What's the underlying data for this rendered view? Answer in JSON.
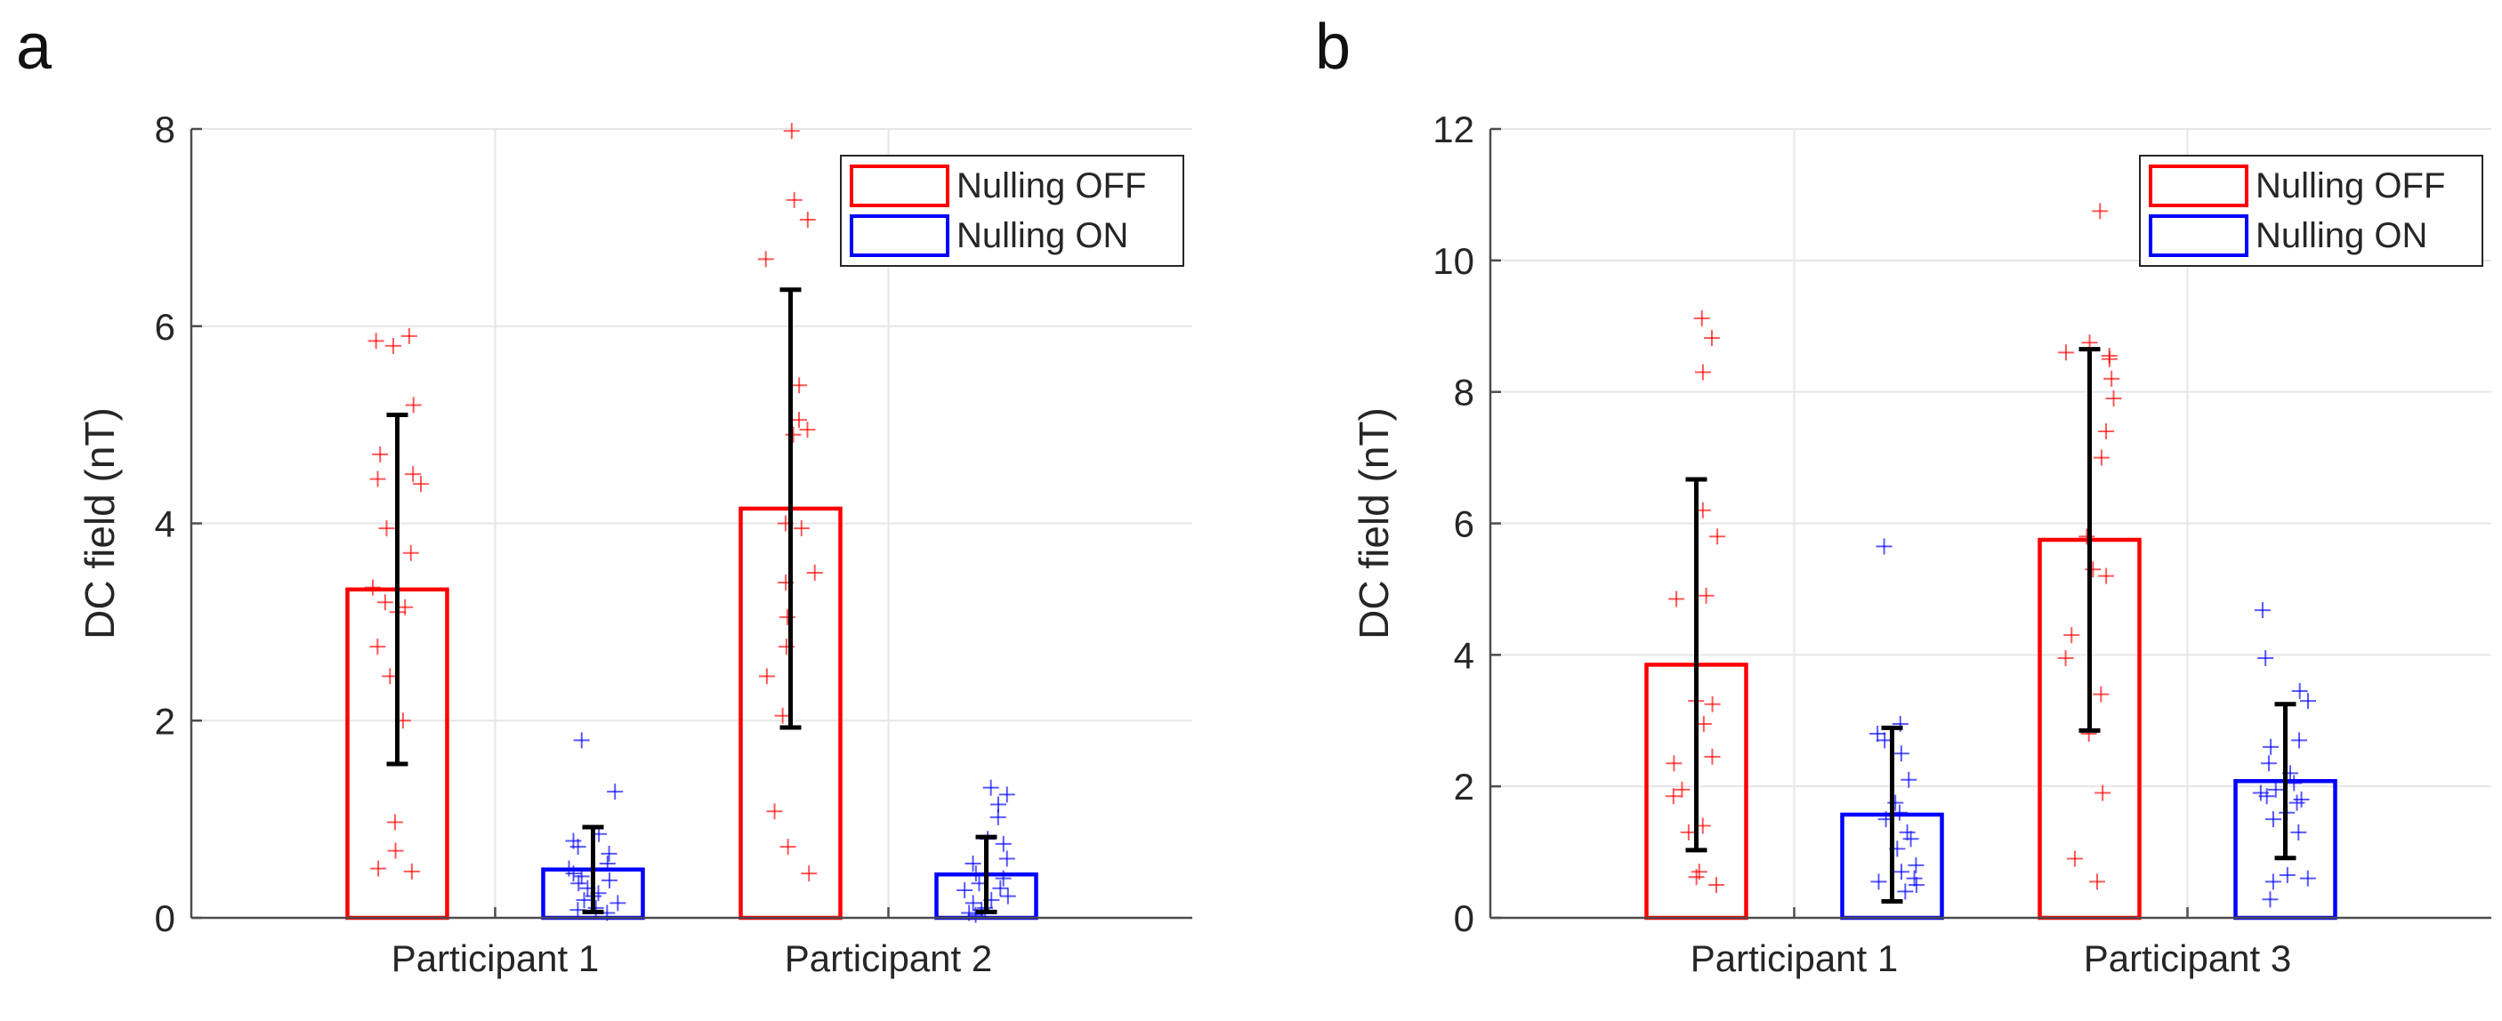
{
  "panels": [
    {
      "label": "a"
    },
    {
      "label": "b"
    }
  ],
  "colors": {
    "off": "#ff0000",
    "on": "#0000ff",
    "errorbar": "#000000",
    "grid": "#e6e6e6",
    "axis": "#4d4d4d"
  },
  "chart_data": [
    {
      "type": "bar",
      "panel": "a",
      "ylabel": "DC field (nT)",
      "xlabel": "",
      "ylim": [
        0,
        8
      ],
      "yticks": [
        0,
        2,
        4,
        6,
        8
      ],
      "categories": [
        "Participant 1",
        "Participant 2"
      ],
      "legend": {
        "position": "top-right",
        "entries": [
          "Nulling OFF",
          "Nulling ON"
        ]
      },
      "grid": true,
      "series": [
        {
          "name": "Nulling OFF",
          "values": [
            3.33,
            4.15
          ],
          "errors": [
            1.77,
            2.22
          ],
          "points": [
            [
              5.9,
              5.85,
              5.8,
              5.2,
              4.7,
              4.5,
              4.45,
              4.4,
              3.95,
              3.7,
              3.35,
              3.2,
              3.15,
              3.1,
              2.75,
              2.45,
              2.0,
              0.97,
              0.68,
              0.5,
              0.47
            ],
            [
              7.98,
              7.28,
              7.08,
              6.68,
              5.4,
              5.05,
              4.95,
              4.9,
              4.0,
              3.95,
              3.5,
              3.4,
              3.05,
              2.75,
              2.45,
              2.05,
              1.08,
              0.72,
              0.45
            ]
          ]
        },
        {
          "name": "Nulling ON",
          "values": [
            0.49,
            0.44
          ],
          "errors": [
            0.43,
            0.38
          ],
          "points": [
            [
              1.8,
              1.28,
              0.85,
              0.78,
              0.72,
              0.65,
              0.55,
              0.5,
              0.45,
              0.42,
              0.38,
              0.35,
              0.3,
              0.25,
              0.22,
              0.18,
              0.15,
              0.1,
              0.08,
              0.05
            ],
            [
              1.32,
              1.25,
              1.15,
              1.02,
              0.8,
              0.75,
              0.6,
              0.55,
              0.45,
              0.4,
              0.35,
              0.3,
              0.28,
              0.22,
              0.18,
              0.15,
              0.1,
              0.08,
              0.05,
              0.03
            ]
          ]
        }
      ]
    },
    {
      "type": "bar",
      "panel": "b",
      "ylabel": "DC field (nT)",
      "xlabel": "",
      "ylim": [
        0,
        12
      ],
      "yticks": [
        0,
        2,
        4,
        6,
        8,
        10,
        12
      ],
      "categories": [
        "Participant 1",
        "Participant 3"
      ],
      "legend": {
        "position": "top-right",
        "entries": [
          "Nulling OFF",
          "Nulling ON"
        ]
      },
      "grid": true,
      "series": [
        {
          "name": "Nulling OFF",
          "values": [
            3.85,
            5.75
          ],
          "errors": [
            2.82,
            2.9
          ],
          "points": [
            [
              9.12,
              8.82,
              8.3,
              6.2,
              5.8,
              4.9,
              4.85,
              3.3,
              3.25,
              2.95,
              2.45,
              2.35,
              1.95,
              1.85,
              1.4,
              1.3,
              0.7,
              0.62,
              0.5
            ],
            [
              10.75,
              8.75,
              8.6,
              8.55,
              8.5,
              8.2,
              7.9,
              7.4,
              7.0,
              5.8,
              5.3,
              5.2,
              4.3,
              3.95,
              3.4,
              2.8,
              1.9,
              0.9,
              0.55
            ]
          ]
        },
        {
          "name": "Nulling ON",
          "values": [
            1.57,
            2.08
          ],
          "errors": [
            1.32,
            1.17
          ],
          "points": [
            [
              5.65,
              2.95,
              2.8,
              2.7,
              2.5,
              2.1,
              1.75,
              1.6,
              1.5,
              1.3,
              1.2,
              1.05,
              0.8,
              0.7,
              0.6,
              0.55,
              0.5,
              0.4
            ],
            [
              4.68,
              3.95,
              3.45,
              3.3,
              2.7,
              2.6,
              2.35,
              2.2,
              2.05,
              1.95,
              1.9,
              1.85,
              1.8,
              1.75,
              1.6,
              1.5,
              1.3,
              0.65,
              0.6,
              0.55,
              0.28
            ]
          ]
        }
      ]
    }
  ]
}
